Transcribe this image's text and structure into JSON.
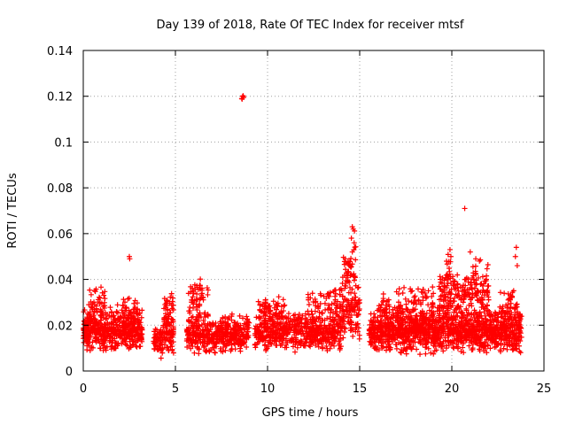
{
  "chart_data": {
    "type": "scatter",
    "title": "Day 139 of 2018, Rate Of TEC Index for receiver mtsf",
    "xlabel": "GPS time / hours",
    "ylabel": "ROTI / TECUs",
    "xlim": [
      0,
      25
    ],
    "ylim": [
      0,
      0.14
    ],
    "xticks": [
      0,
      5,
      10,
      15,
      20,
      25
    ],
    "xtick_labels": [
      "0",
      "5",
      "10",
      "15",
      "20",
      "25"
    ],
    "yticks": [
      0,
      0.02,
      0.04,
      0.06,
      0.08,
      0.1,
      0.12,
      0.14
    ],
    "ytick_labels": [
      "0",
      "0.02",
      "0.04",
      "0.06",
      "0.08",
      "0.1",
      "0.12",
      "0.14"
    ],
    "grid": true,
    "marker": "+",
    "color": "#ff0000",
    "series": [
      {
        "name": "ROTI",
        "distribution": [
          {
            "x": [
              0.0,
              3.2
            ],
            "base": 0.008,
            "top": 0.028,
            "count": 520
          },
          {
            "x": [
              0.3,
              1.2
            ],
            "base": 0.02,
            "top": 0.037,
            "count": 40
          },
          {
            "x": [
              1.8,
              3.0
            ],
            "base": 0.02,
            "top": 0.034,
            "count": 30
          },
          {
            "x": [
              3.8,
              4.3
            ],
            "base": 0.005,
            "top": 0.02,
            "count": 50
          },
          {
            "x": [
              4.3,
              4.9
            ],
            "base": 0.005,
            "top": 0.028,
            "count": 80
          },
          {
            "x": [
              4.4,
              4.9
            ],
            "base": 0.02,
            "top": 0.036,
            "count": 25
          },
          {
            "x": [
              5.6,
              9.0
            ],
            "base": 0.007,
            "top": 0.025,
            "count": 420
          },
          {
            "x": [
              5.7,
              6.8
            ],
            "base": 0.02,
            "top": 0.041,
            "count": 60
          },
          {
            "x": [
              9.3,
              14.0
            ],
            "base": 0.008,
            "top": 0.026,
            "count": 560
          },
          {
            "x": [
              9.5,
              11.0
            ],
            "base": 0.02,
            "top": 0.035,
            "count": 60
          },
          {
            "x": [
              12.0,
              13.8
            ],
            "base": 0.02,
            "top": 0.038,
            "count": 60
          },
          {
            "x": [
              13.9,
              15.0
            ],
            "base": 0.012,
            "top": 0.043,
            "count": 130
          },
          {
            "x": [
              14.1,
              14.5
            ],
            "base": 0.035,
            "top": 0.052,
            "count": 25
          },
          {
            "x": [
              14.5,
              14.8
            ],
            "base": 0.03,
            "top": 0.062,
            "count": 18
          },
          {
            "x": [
              15.5,
              23.8
            ],
            "base": 0.007,
            "top": 0.028,
            "count": 1300
          },
          {
            "x": [
              16.0,
              19.0
            ],
            "base": 0.02,
            "top": 0.038,
            "count": 100
          },
          {
            "x": [
              19.3,
              20.8
            ],
            "base": 0.02,
            "top": 0.045,
            "count": 130
          },
          {
            "x": [
              19.7,
              20.0
            ],
            "base": 0.035,
            "top": 0.052,
            "count": 15
          },
          {
            "x": [
              20.8,
              22.0
            ],
            "base": 0.02,
            "top": 0.05,
            "count": 100
          },
          {
            "x": [
              22.6,
              23.6
            ],
            "base": 0.02,
            "top": 0.038,
            "count": 40
          }
        ],
        "points": [
          [
            8.6,
            0.119
          ],
          [
            8.65,
            0.12
          ],
          [
            8.7,
            0.1195
          ],
          [
            8.62,
            0.1188
          ],
          [
            8.68,
            0.1202
          ],
          [
            2.5,
            0.05
          ],
          [
            2.52,
            0.049
          ],
          [
            14.6,
            0.063
          ],
          [
            14.65,
            0.062
          ],
          [
            14.7,
            0.056
          ],
          [
            14.55,
            0.058
          ],
          [
            14.6,
            0.052
          ],
          [
            20.7,
            0.071
          ],
          [
            23.5,
            0.054
          ],
          [
            23.45,
            0.05
          ],
          [
            23.55,
            0.046
          ],
          [
            21.0,
            0.052
          ],
          [
            21.3,
            0.049
          ],
          [
            21.5,
            0.048
          ],
          [
            19.9,
            0.053
          ],
          [
            19.95,
            0.05
          ]
        ]
      }
    ]
  }
}
